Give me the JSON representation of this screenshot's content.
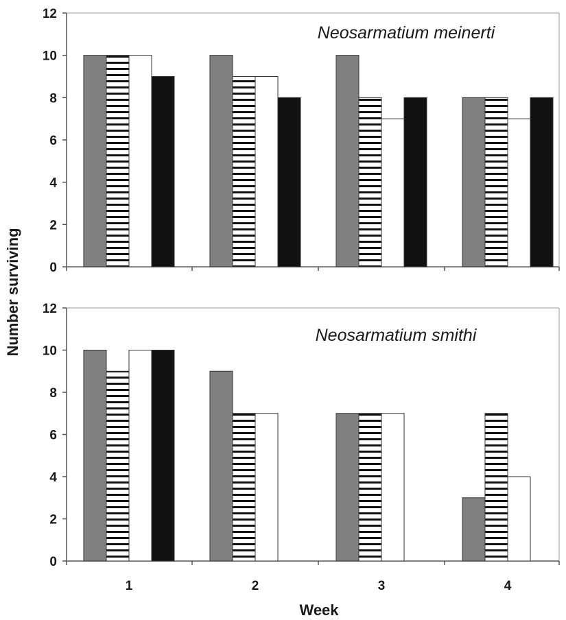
{
  "chart_data": {
    "ylabel": "Number surviving",
    "xlabel": "Week",
    "categories": [
      "1",
      "2",
      "3",
      "4"
    ],
    "ylim": [
      0,
      12
    ],
    "yticks": [
      0,
      2,
      4,
      6,
      8,
      10,
      12
    ],
    "grid": false,
    "legend": "none",
    "series_styles": [
      {
        "fill": "#808080",
        "pattern": "solid"
      },
      {
        "fill": "#ffffff",
        "pattern": "horizontal-stripes"
      },
      {
        "fill": "#ffffff",
        "pattern": "solid"
      },
      {
        "fill": "#111111",
        "pattern": "solid"
      }
    ],
    "panels": [
      {
        "type": "bar",
        "title": "Neosarmatium meinerti",
        "series": [
          {
            "values": [
              10,
              10,
              10,
              8
            ]
          },
          {
            "values": [
              10,
              9,
              8,
              8
            ]
          },
          {
            "values": [
              10,
              9,
              7,
              7
            ]
          },
          {
            "values": [
              9,
              8,
              8,
              8
            ]
          }
        ]
      },
      {
        "type": "bar",
        "title": "Neosarmatium smithi",
        "series": [
          {
            "values": [
              10,
              9,
              7,
              3
            ]
          },
          {
            "values": [
              9,
              7,
              7,
              7
            ]
          },
          {
            "values": [
              10,
              7,
              7,
              4
            ]
          },
          {
            "values": [
              10,
              0,
              0,
              0
            ]
          }
        ]
      }
    ]
  }
}
